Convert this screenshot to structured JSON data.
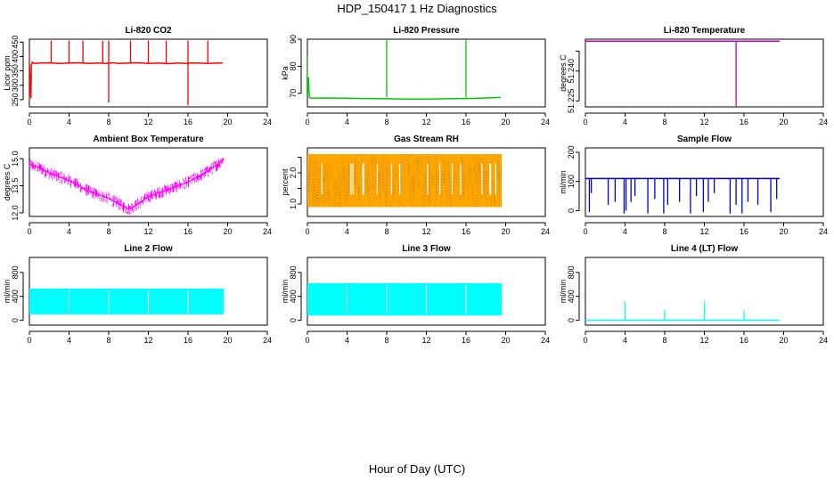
{
  "figure": {
    "title": "HDP_150417  1 Hz Diagnostics",
    "xlabel": "Hour of Day (UTC)"
  },
  "chart_data": [
    {
      "type": "line",
      "title": "Li-820 CO2",
      "ylabel": "Licor ppm",
      "color": "#ff0000",
      "xlim": [
        0,
        24
      ],
      "x_ticks": [
        0,
        4,
        8,
        12,
        16,
        20,
        24
      ],
      "ylim": [
        225,
        460
      ],
      "y_ticks": [
        250,
        300,
        350,
        400,
        450
      ],
      "x": [
        0,
        0.15,
        0.2,
        0.3,
        0.35,
        0.5,
        1,
        2,
        2.2,
        3,
        4,
        5,
        6,
        7,
        7.8,
        8,
        8.5,
        9,
        10,
        11,
        12,
        13,
        14,
        15,
        16,
        16.2,
        17,
        18,
        19,
        19.5
      ],
      "values": [
        375,
        255,
        370,
        380,
        378,
        376,
        377,
        378,
        377,
        376,
        377,
        378,
        376,
        377,
        376,
        377,
        378,
        376,
        377,
        378,
        376,
        377,
        375,
        377,
        376,
        377,
        377,
        376,
        377,
        377
      ],
      "spikes": [
        {
          "x": 0,
          "y": 430
        },
        {
          "x": 0,
          "y": 255
        },
        {
          "x": 2.2,
          "y": 455
        },
        {
          "x": 4,
          "y": 455
        },
        {
          "x": 5.4,
          "y": 455
        },
        {
          "x": 7.4,
          "y": 455
        },
        {
          "x": 8,
          "y": 455
        },
        {
          "x": 8,
          "y": 240
        },
        {
          "x": 10.2,
          "y": 455
        },
        {
          "x": 12,
          "y": 455
        },
        {
          "x": 13.8,
          "y": 455
        },
        {
          "x": 16,
          "y": 455
        },
        {
          "x": 16,
          "y": 230
        },
        {
          "x": 18,
          "y": 455
        }
      ]
    },
    {
      "type": "line",
      "title": "Li-820 Pressure",
      "ylabel": "kPa",
      "color": "#00cc00",
      "xlim": [
        0,
        24
      ],
      "x_ticks": [
        0,
        4,
        8,
        12,
        16,
        20,
        24
      ],
      "ylim": [
        65,
        90
      ],
      "y_ticks": [
        70,
        80,
        90
      ],
      "x": [
        0,
        0.1,
        0.2,
        0.5,
        2,
        4,
        6,
        8,
        10,
        12,
        14,
        16,
        18,
        19.5
      ],
      "values": [
        68.5,
        76,
        68.5,
        68.2,
        68.3,
        68.2,
        68.1,
        68.0,
        67.9,
        67.9,
        68.0,
        68.1,
        68.3,
        68.5
      ],
      "spikes": [
        {
          "x": 0,
          "y": 84
        },
        {
          "x": 8,
          "y": 90
        },
        {
          "x": 16,
          "y": 90
        }
      ]
    },
    {
      "type": "line",
      "title": "Li-820 Temperature",
      "ylabel": "degrees C",
      "color": "#cc00cc",
      "xlim": [
        0,
        24
      ],
      "x_ticks": [
        0,
        4,
        8,
        12,
        16,
        20,
        24
      ],
      "ylim": [
        51.222,
        51.256
      ],
      "y_ticks": [
        51.225,
        51.24,
        51.25
      ],
      "y_tick_labels": [
        "51.225",
        "51.240",
        ""
      ],
      "x": [
        0,
        4,
        8,
        12,
        15.2,
        19.6
      ],
      "values": [
        51.255,
        51.255,
        51.255,
        51.255,
        51.255,
        51.255
      ],
      "spikes": [
        {
          "x": 15.2,
          "y": 51.222
        }
      ]
    },
    {
      "type": "line",
      "title": "Ambient Box Temperature",
      "ylabel": "degrees C",
      "color": "#ff00ff",
      "xlim": [
        0,
        24
      ],
      "x_ticks": [
        0,
        4,
        8,
        12,
        16,
        20,
        24
      ],
      "ylim": [
        11.8,
        15.6
      ],
      "y_ticks": [
        12.0,
        13.5,
        15.0
      ],
      "y_tick_labels": [
        "12.0",
        "13.5",
        "15.0"
      ],
      "x": [
        0,
        1,
        2,
        3,
        4,
        5,
        6,
        7,
        8,
        9,
        10,
        11,
        12,
        13,
        14,
        15,
        16,
        17,
        18,
        19,
        19.6
      ],
      "values": [
        14.7,
        14.5,
        14.2,
        14.0,
        13.8,
        13.5,
        13.2,
        13.0,
        12.8,
        12.5,
        12.2,
        12.5,
        12.9,
        13.1,
        13.3,
        13.5,
        13.7,
        14.0,
        14.3,
        14.7,
        15.0
      ],
      "noise": 0.35
    },
    {
      "type": "line",
      "title": "Gas Stream RH",
      "ylabel": "percent",
      "color": "#ffa500",
      "xlim": [
        0,
        24
      ],
      "x_ticks": [
        0,
        4,
        8,
        12,
        16,
        20,
        24
      ],
      "ylim": [
        0.6,
        2.8
      ],
      "y_ticks": [
        1.0,
        1.5,
        2.0,
        2.5
      ],
      "y_tick_labels": [
        "1.0",
        "",
        "2.0",
        ""
      ],
      "x": [
        0,
        19.6
      ],
      "band_low": 0.9,
      "band_high": 2.6,
      "dot_color": "#555555"
    },
    {
      "type": "line",
      "title": "Sample Flow",
      "ylabel": "ml/min",
      "color": "#0000cc",
      "xlim": [
        0,
        24
      ],
      "x_ticks": [
        0,
        4,
        8,
        12,
        16,
        20,
        24
      ],
      "ylim": [
        -20,
        215
      ],
      "y_ticks": [
        0,
        100,
        200
      ],
      "x": [
        0,
        19.6
      ],
      "values": [
        110,
        110
      ],
      "dips": [
        {
          "x": 0.4,
          "y": -5
        },
        {
          "x": 0.6,
          "y": 60
        },
        {
          "x": 2.3,
          "y": 20
        },
        {
          "x": 3.0,
          "y": 30
        },
        {
          "x": 3.9,
          "y": -10
        },
        {
          "x": 4.1,
          "y": 0
        },
        {
          "x": 4.6,
          "y": 30
        },
        {
          "x": 5.0,
          "y": 50
        },
        {
          "x": 6.3,
          "y": -10
        },
        {
          "x": 7.0,
          "y": 40
        },
        {
          "x": 7.9,
          "y": -10
        },
        {
          "x": 8.3,
          "y": 20
        },
        {
          "x": 9.5,
          "y": 30
        },
        {
          "x": 10.6,
          "y": -10
        },
        {
          "x": 11.2,
          "y": 50
        },
        {
          "x": 11.9,
          "y": -5
        },
        {
          "x": 12.4,
          "y": 30
        },
        {
          "x": 13.0,
          "y": 60
        },
        {
          "x": 14.6,
          "y": -10
        },
        {
          "x": 15.2,
          "y": 20
        },
        {
          "x": 15.8,
          "y": -10
        },
        {
          "x": 16.4,
          "y": 30
        },
        {
          "x": 17.4,
          "y": 20
        },
        {
          "x": 18.7,
          "y": -5
        },
        {
          "x": 19.3,
          "y": 40
        }
      ]
    },
    {
      "type": "area",
      "title": "Line 2 Flow",
      "ylabel": "ml/min",
      "color": "#00ffff",
      "xlim": [
        0,
        24
      ],
      "x_ticks": [
        0,
        4,
        8,
        12,
        16,
        20,
        24
      ],
      "ylim": [
        -80,
        1050
      ],
      "y_ticks": [
        0,
        400,
        800
      ],
      "x": [
        0,
        19.6
      ],
      "band_low": 100,
      "band_high": 530,
      "gaps": [
        4,
        8,
        12,
        16
      ]
    },
    {
      "type": "area",
      "title": "Line 3 Flow",
      "ylabel": "ml/min",
      "color": "#00ffff",
      "xlim": [
        0,
        24
      ],
      "x_ticks": [
        0,
        4,
        8,
        12,
        16,
        20,
        24
      ],
      "ylim": [
        -80,
        1050
      ],
      "y_ticks": [
        0,
        400,
        800
      ],
      "x": [
        0,
        19.6
      ],
      "band_low": 80,
      "band_high": 620,
      "gaps": [
        4,
        8,
        12,
        16
      ]
    },
    {
      "type": "line",
      "title": "Line 4 (LT) Flow",
      "ylabel": "ml/min",
      "color": "#00ffff",
      "xlim": [
        0,
        24
      ],
      "x_ticks": [
        0,
        4,
        8,
        12,
        16,
        20,
        24
      ],
      "ylim": [
        -80,
        1050
      ],
      "y_ticks": [
        0,
        400,
        800
      ],
      "x": [
        0,
        19.6
      ],
      "values": [
        0,
        0
      ],
      "spikes": [
        {
          "x": 4,
          "y": 320
        },
        {
          "x": 8,
          "y": 170
        },
        {
          "x": 12,
          "y": 320
        },
        {
          "x": 16,
          "y": 160
        }
      ]
    }
  ]
}
